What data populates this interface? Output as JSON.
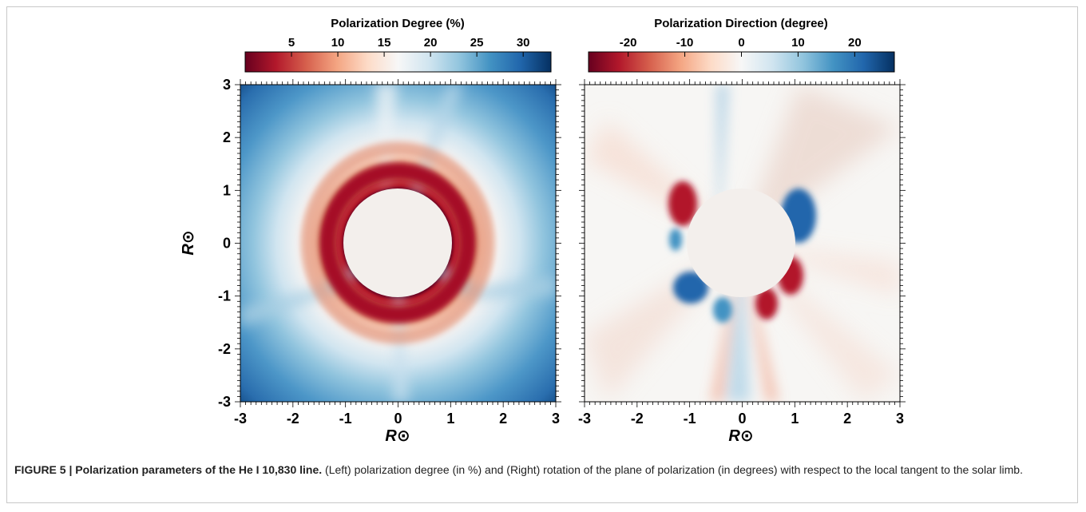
{
  "figure": {
    "caption_label": "FIGURE 5 | Polarization parameters of the He I 10,830 line.",
    "caption_text": " (Left) polarization degree (in %) and (Right) rotation of the plane of polarization (in degrees) with respect to the local tangent to the solar limb."
  },
  "chart_data": [
    {
      "type": "heatmap",
      "title": "Polarization Degree (%)",
      "xlabel": "R⊙",
      "ylabel": "R⊙",
      "xlim": [
        -3,
        3
      ],
      "ylim": [
        -3,
        3
      ],
      "x_ticks": [
        "-3",
        "-2",
        "-1",
        "0",
        "1",
        "2",
        "3"
      ],
      "y_ticks": [
        "3",
        "2",
        "1",
        "0",
        "-1",
        "-2",
        "-3"
      ],
      "colorbar": {
        "ticks": [
          "5",
          "10",
          "15",
          "20",
          "25",
          "30"
        ],
        "tick_values": [
          5,
          10,
          15,
          20,
          25,
          30
        ],
        "range": [
          0,
          33
        ],
        "colormap": [
          "#67001f",
          "#b2182b",
          "#d6604d",
          "#f4a582",
          "#fddbc7",
          "#f7f7f7",
          "#d1e5f0",
          "#92c5de",
          "#4393c3",
          "#2166ac",
          "#053061"
        ]
      },
      "disk_radius": 1.0,
      "disk_color": "#f3efec",
      "description_values": {
        "near_limb_min": 2,
        "far_corner_max": 33
      }
    },
    {
      "type": "heatmap",
      "title": "Polarization Direction (degree)",
      "xlabel": "R⊙",
      "xlim": [
        -3,
        3
      ],
      "ylim": [
        -3,
        3
      ],
      "x_ticks": [
        "-3",
        "-2",
        "-1",
        "0",
        "1",
        "2",
        "3"
      ],
      "colorbar": {
        "ticks": [
          "-20",
          "-10",
          "0",
          "10",
          "20"
        ],
        "tick_values": [
          -20,
          -10,
          0,
          10,
          20
        ],
        "range": [
          -27,
          27
        ],
        "colormap": [
          "#67001f",
          "#b2182b",
          "#d6604d",
          "#f4a582",
          "#fddbc7",
          "#f7f7f7",
          "#d1e5f0",
          "#92c5de",
          "#4393c3",
          "#2166ac",
          "#053061"
        ]
      },
      "disk_radius": 1.0,
      "disk_color": "#f3efec"
    }
  ]
}
